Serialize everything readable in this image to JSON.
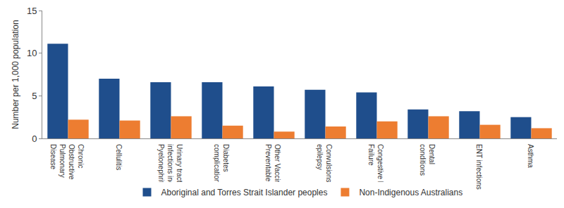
{
  "chart_data": {
    "type": "bar",
    "y_label": "Number per 1,000 population",
    "categories": [
      "Chronic Obstructive Pulmonary Disease",
      "Cellulitis",
      "Urinary tract infections incl. Pyelonephritis",
      "Diabetes complications",
      "Other Vaccine Preventable",
      "Convulsions and epilepsy",
      "Congestive Heart Failure",
      "Dental conditions",
      "ENT infections",
      "Asthma"
    ],
    "series": [
      {
        "name": "Aboriginal and Torres Strait Islander peoples",
        "color": "#1f4e8c",
        "values": [
          11.1,
          7.0,
          6.6,
          6.6,
          6.1,
          5.7,
          5.4,
          3.4,
          3.2,
          2.5
        ]
      },
      {
        "name": "Non-Indigenous Australians",
        "color": "#ed7d31",
        "values": [
          2.2,
          2.1,
          2.6,
          1.5,
          0.8,
          1.4,
          2.0,
          2.6,
          1.6,
          1.2
        ]
      }
    ],
    "ylim": [
      0,
      15
    ],
    "yticks": [
      0,
      5,
      10,
      15
    ],
    "grid": false,
    "legend": "bottom"
  }
}
